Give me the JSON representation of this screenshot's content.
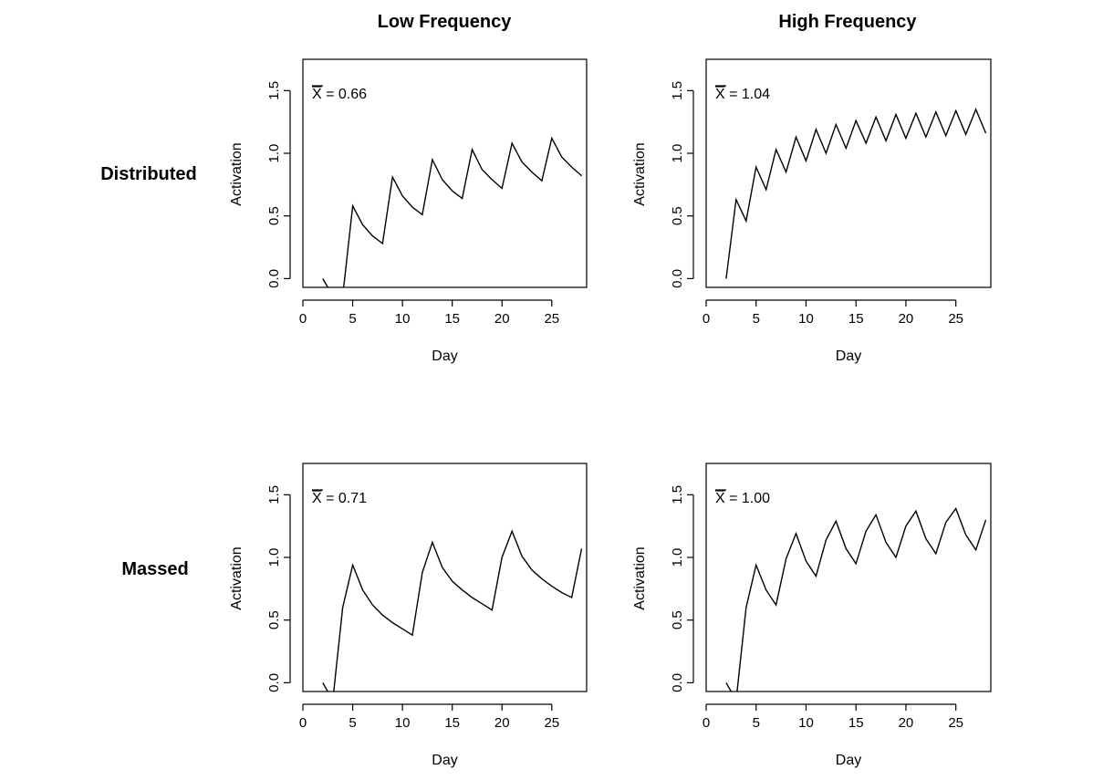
{
  "figure": {
    "column_titles": [
      "Low Frequency",
      "High Frequency"
    ],
    "row_labels": [
      "Distributed",
      "Massed"
    ]
  },
  "chart_data": [
    {
      "type": "line",
      "condition": "Distributed / Low Frequency",
      "xlabel": "Day",
      "ylabel": "Activation",
      "xlim": [
        0,
        28.5
      ],
      "ylim": [
        -0.07,
        1.75
      ],
      "xticks": [
        0,
        5,
        10,
        15,
        20,
        25
      ],
      "yticks": [
        0.0,
        0.5,
        1.0,
        1.5
      ],
      "xtick_labels": [
        "0",
        "5",
        "10",
        "15",
        "20",
        "25"
      ],
      "ytick_labels": [
        "0.0",
        "0.5",
        "1.0",
        "1.5"
      ],
      "mean_symbol": "X",
      "mean_label": "= 0.66",
      "series": [
        {
          "name": "activation-early",
          "x": [
            2,
            2.5
          ],
          "y": [
            0.0,
            -0.07
          ]
        },
        {
          "name": "activation",
          "x": [
            4.1,
            5,
            6,
            7,
            8,
            9,
            10,
            11,
            12,
            13,
            14,
            15,
            16,
            17,
            18,
            19,
            20,
            21,
            22,
            23,
            24,
            25,
            26,
            27,
            28
          ],
          "y": [
            -0.07,
            0.58,
            0.43,
            0.34,
            0.28,
            0.81,
            0.66,
            0.57,
            0.51,
            0.95,
            0.79,
            0.7,
            0.64,
            1.03,
            0.87,
            0.79,
            0.72,
            1.08,
            0.93,
            0.85,
            0.78,
            1.12,
            0.97,
            0.89,
            0.82
          ]
        }
      ]
    },
    {
      "type": "line",
      "condition": "Distributed / High Frequency",
      "xlabel": "Day",
      "ylabel": "Activation",
      "xlim": [
        0,
        28.5
      ],
      "ylim": [
        -0.07,
        1.75
      ],
      "xticks": [
        0,
        5,
        10,
        15,
        20,
        25
      ],
      "yticks": [
        0.0,
        0.5,
        1.0,
        1.5
      ],
      "xtick_labels": [
        "0",
        "5",
        "10",
        "15",
        "20",
        "25"
      ],
      "ytick_labels": [
        "0.0",
        "0.5",
        "1.0",
        "1.5"
      ],
      "mean_symbol": "X",
      "mean_label": "= 1.04",
      "series": [
        {
          "name": "activation",
          "x": [
            2,
            3,
            4,
            5,
            6,
            7,
            8,
            9,
            10,
            11,
            12,
            13,
            14,
            15,
            16,
            17,
            18,
            19,
            20,
            21,
            22,
            23,
            24,
            25,
            26,
            27,
            28
          ],
          "y": [
            0.0,
            0.63,
            0.46,
            0.89,
            0.71,
            1.03,
            0.85,
            1.13,
            0.94,
            1.19,
            1.0,
            1.23,
            1.04,
            1.26,
            1.08,
            1.29,
            1.1,
            1.31,
            1.12,
            1.32,
            1.13,
            1.33,
            1.14,
            1.34,
            1.15,
            1.35,
            1.16
          ]
        }
      ]
    },
    {
      "type": "line",
      "condition": "Massed / Low Frequency",
      "xlabel": "Day",
      "ylabel": "Activation",
      "xlim": [
        0,
        28.5
      ],
      "ylim": [
        -0.07,
        1.75
      ],
      "xticks": [
        0,
        5,
        10,
        15,
        20,
        25
      ],
      "yticks": [
        0.0,
        0.5,
        1.0,
        1.5
      ],
      "xtick_labels": [
        "0",
        "5",
        "10",
        "15",
        "20",
        "25"
      ],
      "ytick_labels": [
        "0.0",
        "0.5",
        "1.0",
        "1.5"
      ],
      "mean_symbol": "X",
      "mean_label": "= 0.71",
      "series": [
        {
          "name": "activation-early",
          "x": [
            2,
            2.5
          ],
          "y": [
            0.0,
            -0.07
          ]
        },
        {
          "name": "activation",
          "x": [
            3.1,
            4,
            5,
            6,
            7,
            8,
            9,
            10,
            11,
            12,
            13,
            14,
            15,
            16,
            17,
            18,
            19,
            20,
            21,
            22,
            23,
            24,
            25,
            26,
            27,
            28
          ],
          "y": [
            -0.07,
            0.6,
            0.94,
            0.74,
            0.62,
            0.54,
            0.48,
            0.43,
            0.38,
            0.88,
            1.12,
            0.92,
            0.81,
            0.74,
            0.68,
            0.63,
            0.58,
            1.0,
            1.21,
            1.01,
            0.9,
            0.83,
            0.77,
            0.72,
            0.68,
            1.07
          ]
        }
      ]
    },
    {
      "type": "line",
      "condition": "Massed / High Frequency",
      "xlabel": "Day",
      "ylabel": "Activation",
      "xlim": [
        0,
        28.5
      ],
      "ylim": [
        -0.07,
        1.75
      ],
      "xticks": [
        0,
        5,
        10,
        15,
        20,
        25
      ],
      "yticks": [
        0.0,
        0.5,
        1.0,
        1.5
      ],
      "xtick_labels": [
        "0",
        "5",
        "10",
        "15",
        "20",
        "25"
      ],
      "ytick_labels": [
        "0.0",
        "0.5",
        "1.0",
        "1.5"
      ],
      "mean_symbol": "X",
      "mean_label": "= 1.00",
      "series": [
        {
          "name": "activation-early",
          "x": [
            2,
            2.5
          ],
          "y": [
            0.0,
            -0.07
          ]
        },
        {
          "name": "activation",
          "x": [
            3.1,
            4,
            5,
            6,
            7,
            8,
            9,
            10,
            11,
            12,
            13,
            14,
            15,
            16,
            17,
            18,
            19,
            20,
            21,
            22,
            23,
            24,
            25,
            26,
            27,
            28
          ],
          "y": [
            -0.07,
            0.6,
            0.94,
            0.74,
            0.62,
            0.99,
            1.19,
            0.97,
            0.85,
            1.14,
            1.29,
            1.07,
            0.95,
            1.21,
            1.34,
            1.12,
            1.0,
            1.25,
            1.37,
            1.15,
            1.03,
            1.28,
            1.39,
            1.18,
            1.06,
            1.3
          ]
        }
      ]
    }
  ]
}
